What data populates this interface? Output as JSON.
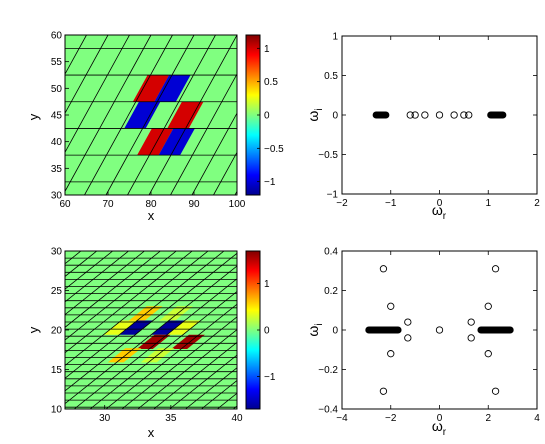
{
  "chart_data": [
    {
      "id": "top-heatmap",
      "type": "heatmap",
      "xlabel": "x",
      "ylabel": "y",
      "xlim": [
        60,
        100
      ],
      "ylim": [
        30,
        60
      ],
      "xticks": [
        "60",
        "70",
        "80",
        "90",
        "100"
      ],
      "yticks": [
        "30",
        "35",
        "40",
        "45",
        "50",
        "55",
        "60"
      ],
      "colorbar": {
        "range": [
          -1.2,
          1.2
        ],
        "ticks": [
          "1",
          "0.5",
          "0",
          "-0.5",
          "-1"
        ],
        "tick_values": [
          1,
          0.5,
          0,
          -0.5,
          -1
        ]
      },
      "background_value": 0,
      "lattice_lines_per_cell": 1,
      "cells": [
        {
          "x": 80,
          "y": 50,
          "value": 1
        },
        {
          "x": 85,
          "y": 50,
          "value": -1
        },
        {
          "x": 78,
          "y": 45,
          "value": -1
        },
        {
          "x": 83,
          "y": 45,
          "value": 0
        },
        {
          "x": 88,
          "y": 45,
          "value": 1
        },
        {
          "x": 81,
          "y": 40,
          "value": 1
        },
        {
          "x": 86,
          "y": 40,
          "value": -1
        }
      ]
    },
    {
      "id": "top-spectrum",
      "type": "scatter",
      "xlabel": "ω",
      "xlabel_sub": "r",
      "ylabel": "ω",
      "ylabel_sub": "i",
      "xlim": [
        -2,
        2
      ],
      "ylim": [
        -1,
        1
      ],
      "xticks": [
        "-2",
        "-1",
        "0",
        "1",
        "2"
      ],
      "yticks": [
        "1",
        "0.5",
        "0",
        "-0.5",
        "-1"
      ],
      "dense_bands": [
        {
          "from": -1.3,
          "to": -1.1,
          "y": 0
        },
        {
          "from": 1.05,
          "to": 1.3,
          "y": 0
        }
      ],
      "points": [
        {
          "x": -0.6,
          "y": 0
        },
        {
          "x": -0.5,
          "y": 0
        },
        {
          "x": -0.3,
          "y": 0
        },
        {
          "x": 0,
          "y": 0
        },
        {
          "x": 0.3,
          "y": 0
        },
        {
          "x": 0.5,
          "y": 0
        },
        {
          "x": 0.6,
          "y": 0
        }
      ]
    },
    {
      "id": "bottom-heatmap",
      "type": "heatmap",
      "xlabel": "x",
      "ylabel": "y",
      "xlim": [
        27,
        40
      ],
      "ylim": [
        10,
        30
      ],
      "xticks": [
        "30",
        "35",
        "40"
      ],
      "yticks": [
        "10",
        "15",
        "20",
        "25",
        "30"
      ],
      "colorbar": {
        "range": [
          -1.7,
          1.7
        ],
        "ticks": [
          "1",
          "0",
          "-1"
        ],
        "tick_values": [
          1,
          0,
          -1
        ]
      },
      "background_value": 0,
      "lattice_lines_per_cell": 2,
      "cells": [
        {
          "x": 33.1,
          "y": 22.1,
          "value": 0.6
        },
        {
          "x": 35.4,
          "y": 22.1,
          "value": 0.25
        },
        {
          "x": 31.2,
          "y": 20.3,
          "value": 0.35
        },
        {
          "x": 32.4,
          "y": 20.3,
          "value": -1.6
        },
        {
          "x": 33.6,
          "y": 20.3,
          "value": 0
        },
        {
          "x": 34.8,
          "y": 20.3,
          "value": -1.6
        },
        {
          "x": 36.0,
          "y": 20.3,
          "value": 0.35
        },
        {
          "x": 33.7,
          "y": 18.5,
          "value": 1.6
        },
        {
          "x": 36.3,
          "y": 18.5,
          "value": 1.6
        },
        {
          "x": 31.5,
          "y": 16.8,
          "value": 0.6
        },
        {
          "x": 34.0,
          "y": 16.8,
          "value": 0.25
        }
      ]
    },
    {
      "id": "bottom-spectrum",
      "type": "scatter",
      "xlabel": "ω",
      "xlabel_sub": "r",
      "ylabel": "ω",
      "ylabel_sub": "i",
      "xlim": [
        -4,
        4
      ],
      "ylim": [
        -0.4,
        0.4
      ],
      "xticks": [
        "-4",
        "-2",
        "0",
        "2",
        "4"
      ],
      "yticks": [
        "0.4",
        "0.2",
        "0",
        "-0.2",
        "-0.4"
      ],
      "dense_bands": [
        {
          "from": -2.9,
          "to": -1.7,
          "y": 0
        },
        {
          "from": 1.7,
          "to": 2.9,
          "y": 0
        }
      ],
      "points": [
        {
          "x": -2.3,
          "y": 0.31
        },
        {
          "x": 2.3,
          "y": 0.31
        },
        {
          "x": -2.3,
          "y": -0.31
        },
        {
          "x": 2.3,
          "y": -0.31
        },
        {
          "x": -2.0,
          "y": 0.12
        },
        {
          "x": 2.0,
          "y": 0.12
        },
        {
          "x": -2.0,
          "y": -0.12
        },
        {
          "x": 2.0,
          "y": -0.12
        },
        {
          "x": -1.3,
          "y": 0.04
        },
        {
          "x": -1.3,
          "y": -0.04
        },
        {
          "x": 1.3,
          "y": 0.04
        },
        {
          "x": 1.3,
          "y": -0.04
        },
        {
          "x": 0,
          "y": 0
        }
      ]
    }
  ]
}
